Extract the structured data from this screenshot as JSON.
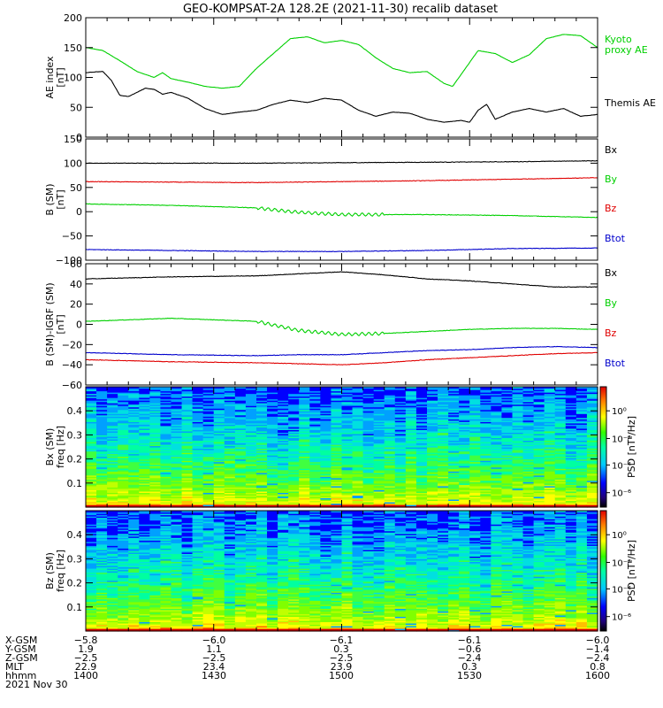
{
  "title": "GEO-KOMPSAT-2A 128.2E (2021-11-30) recalib dataset",
  "colors": {
    "black": "#000000",
    "green": "#00d000",
    "red": "#e00000",
    "blue": "#0000cc"
  },
  "chart_data": [
    {
      "type": "line",
      "ylabel": "AE index\n[nT]",
      "ylim": [
        0,
        200
      ],
      "yticks": [
        0,
        50,
        100,
        150,
        200
      ],
      "xlim": [
        0,
        120
      ],
      "series": [
        {
          "name": "Kyoto\nproxy AE",
          "color": "green",
          "x": [
            0,
            4,
            8,
            12,
            16,
            18,
            20,
            24,
            28,
            32,
            36,
            40,
            44,
            48,
            52,
            56,
            60,
            64,
            68,
            72,
            76,
            80,
            84,
            86,
            88,
            90,
            92,
            96,
            100,
            104,
            108,
            112,
            116,
            120
          ],
          "values": [
            150,
            145,
            128,
            110,
            100,
            108,
            98,
            92,
            85,
            82,
            85,
            115,
            140,
            165,
            168,
            158,
            162,
            155,
            133,
            115,
            108,
            110,
            90,
            85,
            105,
            125,
            145,
            140,
            125,
            138,
            165,
            172,
            170,
            150
          ]
        },
        {
          "name": "Themis AE",
          "color": "black",
          "x": [
            0,
            4,
            6,
            8,
            10,
            12,
            14,
            16,
            18,
            20,
            24,
            28,
            32,
            36,
            40,
            44,
            48,
            52,
            56,
            60,
            64,
            68,
            72,
            76,
            80,
            84,
            88,
            90,
            92,
            94,
            96,
            100,
            104,
            108,
            112,
            116,
            120
          ],
          "values": [
            108,
            110,
            95,
            70,
            68,
            75,
            82,
            80,
            72,
            75,
            65,
            48,
            38,
            42,
            45,
            55,
            62,
            58,
            65,
            62,
            45,
            35,
            42,
            40,
            30,
            25,
            28,
            25,
            45,
            55,
            30,
            42,
            48,
            42,
            48,
            35,
            38
          ]
        }
      ]
    },
    {
      "type": "line",
      "ylabel": "B (SM)\n[nT]",
      "ylim": [
        -100,
        150
      ],
      "yticks": [
        -100,
        -50,
        0,
        50,
        100,
        150
      ],
      "xlim": [
        0,
        120
      ],
      "series": [
        {
          "name": "Bx",
          "color": "black",
          "x": [
            0,
            20,
            40,
            60,
            80,
            100,
            120
          ],
          "values": [
            100,
            100,
            100,
            101,
            102,
            103,
            105
          ]
        },
        {
          "name": "By",
          "color": "green",
          "x": [
            0,
            20,
            40,
            48,
            60,
            80,
            100,
            120
          ],
          "values": [
            16,
            13,
            8,
            0,
            -6,
            -6,
            -8,
            -12
          ]
        },
        {
          "name": "Bz",
          "color": "red",
          "x": [
            0,
            20,
            40,
            60,
            80,
            100,
            120
          ],
          "values": [
            62,
            61,
            60,
            62,
            64,
            67,
            70
          ]
        },
        {
          "name": "Btot",
          "color": "blue",
          "x": [
            0,
            20,
            40,
            60,
            80,
            100,
            120
          ],
          "values": [
            -78,
            -80,
            -82,
            -82,
            -80,
            -76,
            -75
          ]
        }
      ]
    },
    {
      "type": "line",
      "ylabel": "B (SM)-IGRF (SM)\n[nT]",
      "ylim": [
        -60,
        60
      ],
      "yticks": [
        -60,
        -40,
        -20,
        0,
        20,
        40,
        60
      ],
      "xlim": [
        0,
        120
      ],
      "series": [
        {
          "name": "Bx",
          "color": "black",
          "x": [
            0,
            20,
            40,
            50,
            60,
            70,
            80,
            90,
            100,
            110,
            120
          ],
          "values": [
            45,
            47,
            48,
            50,
            52,
            49,
            45,
            43,
            40,
            37,
            37
          ]
        },
        {
          "name": "By",
          "color": "green",
          "x": [
            0,
            20,
            40,
            50,
            60,
            70,
            80,
            90,
            100,
            110,
            120
          ],
          "values": [
            3,
            6,
            3,
            -6,
            -10,
            -9,
            -7,
            -5,
            -4,
            -4,
            -5
          ]
        },
        {
          "name": "Bz",
          "color": "red",
          "x": [
            0,
            20,
            40,
            50,
            60,
            70,
            80,
            90,
            100,
            110,
            120
          ],
          "values": [
            -35,
            -37,
            -38,
            -39,
            -40,
            -38,
            -35,
            -33,
            -31,
            -29,
            -28
          ]
        },
        {
          "name": "Btot",
          "color": "blue",
          "x": [
            0,
            20,
            40,
            50,
            60,
            70,
            80,
            90,
            100,
            110,
            120
          ],
          "values": [
            -28,
            -30,
            -31,
            -30,
            -30,
            -28,
            -26,
            -25,
            -23,
            -22,
            -23
          ]
        }
      ]
    },
    {
      "type": "heatmap",
      "ylabel": "Bx (SM)\nfreq [Hz]",
      "ylim": [
        0,
        0.5
      ],
      "yticks": [
        0.1,
        0.2,
        0.3,
        0.4
      ],
      "xlim": [
        0,
        120
      ],
      "colorbar": {
        "label": "PSD [nT²/Hz]",
        "ticks": [
          "10⁰",
          "10⁻²",
          "10⁻⁴",
          "10⁻⁶"
        ]
      }
    },
    {
      "type": "heatmap",
      "ylabel": "Bz (SM)\nfreq [Hz]",
      "ylim": [
        0,
        0.5
      ],
      "yticks": [
        0.1,
        0.2,
        0.3,
        0.4
      ],
      "xlim": [
        0,
        120
      ],
      "colorbar": {
        "label": "PSD [nT²/Hz]",
        "ticks": [
          "10⁰",
          "10⁻²",
          "10⁻⁴",
          "10⁻⁶"
        ]
      }
    }
  ],
  "ephemeris": {
    "rows": [
      {
        "label": "X-GSM",
        "values": [
          "−5.8",
          "−6.0",
          "−6.1",
          "−6.1",
          "−6.0"
        ]
      },
      {
        "label": "Y-GSM",
        "values": [
          "1.9",
          "1.1",
          "0.3",
          "−0.6",
          "−1.4"
        ]
      },
      {
        "label": "Z-GSM",
        "values": [
          "−2.5",
          "−2.5",
          "−2.5",
          "−2.4",
          "−2.4"
        ]
      },
      {
        "label": "MLT",
        "values": [
          "22.9",
          "23.4",
          "23.9",
          "0.3",
          "0.8"
        ]
      },
      {
        "label": "hhmm",
        "values": [
          "1400",
          "1430",
          "1500",
          "1530",
          "1600"
        ]
      }
    ],
    "date": "2021 Nov 30"
  }
}
